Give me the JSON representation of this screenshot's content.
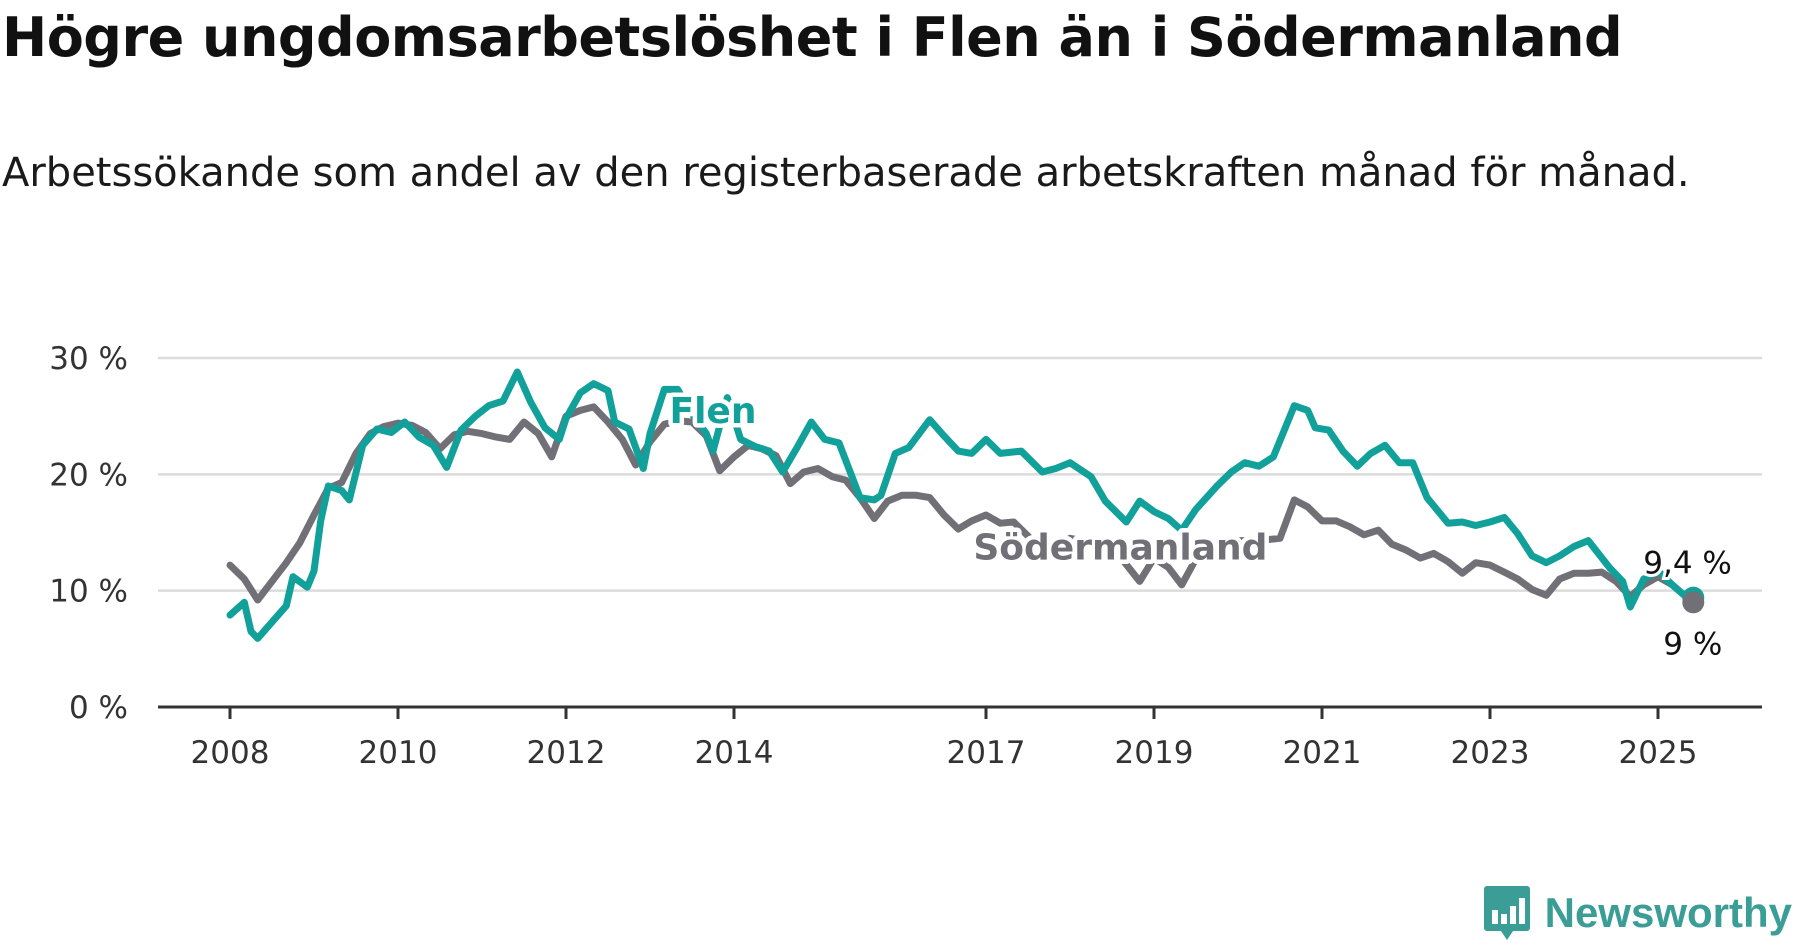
{
  "title": "Högre ungdomsarbetslöshet i Flen än i Södermanland",
  "subtitle": "Arbetssökande som andel av den registerbaserade arbetskraften månad för månad.",
  "brand": "Newsworthy",
  "colors": {
    "flen": "#11a19a",
    "sodermanland": "#717077",
    "grid": "#dcdcdc",
    "axis": "#333333"
  },
  "chart_data": {
    "type": "line",
    "ylim": [
      0,
      30
    ],
    "xlim": [
      2008.0,
      2025.8
    ],
    "y_ticks": [
      0,
      10,
      20,
      30
    ],
    "y_tick_labels": [
      "0 %",
      "10 %",
      "20 %",
      "30 %"
    ],
    "x_ticks": [
      2008,
      2010,
      2012,
      2014,
      2017,
      2019,
      2021,
      2023,
      2025
    ],
    "x_tick_labels": [
      "2008",
      "2010",
      "2012",
      "2014",
      "2017",
      "2019",
      "2021",
      "2023",
      "2025"
    ],
    "grid": "horizontal",
    "series": [
      {
        "name": "Flen",
        "end_label": "9,4 %",
        "points": [
          [
            2008.0,
            7.9
          ],
          [
            2008.17,
            9.0
          ],
          [
            2008.25,
            6.5
          ],
          [
            2008.33,
            5.9
          ],
          [
            2008.5,
            7.3
          ],
          [
            2008.67,
            8.7
          ],
          [
            2008.75,
            11.2
          ],
          [
            2008.92,
            10.3
          ],
          [
            2009.0,
            11.7
          ],
          [
            2009.08,
            16.0
          ],
          [
            2009.17,
            19.0
          ],
          [
            2009.33,
            18.6
          ],
          [
            2009.42,
            17.8
          ],
          [
            2009.58,
            22.5
          ],
          [
            2009.75,
            23.9
          ],
          [
            2009.92,
            23.6
          ],
          [
            2010.08,
            24.5
          ],
          [
            2010.25,
            23.2
          ],
          [
            2010.42,
            22.5
          ],
          [
            2010.58,
            20.6
          ],
          [
            2010.75,
            23.8
          ],
          [
            2010.92,
            25.0
          ],
          [
            2011.08,
            25.9
          ],
          [
            2011.25,
            26.3
          ],
          [
            2011.42,
            28.8
          ],
          [
            2011.58,
            26.2
          ],
          [
            2011.75,
            24.0
          ],
          [
            2011.92,
            23.0
          ],
          [
            2012.0,
            24.8
          ],
          [
            2012.17,
            27.0
          ],
          [
            2012.33,
            27.8
          ],
          [
            2012.5,
            27.2
          ],
          [
            2012.58,
            24.5
          ],
          [
            2012.75,
            23.9
          ],
          [
            2012.92,
            20.5
          ],
          [
            2013.0,
            23.5
          ],
          [
            2013.17,
            27.3
          ],
          [
            2013.33,
            27.3
          ],
          [
            2013.5,
            25.2
          ],
          [
            2013.67,
            23.5
          ],
          [
            2013.75,
            22.0
          ],
          [
            2013.92,
            26.6
          ],
          [
            2014.08,
            23.0
          ],
          [
            2014.25,
            22.4
          ],
          [
            2014.42,
            22.0
          ],
          [
            2014.58,
            20.2
          ],
          [
            2014.75,
            22.3
          ],
          [
            2014.92,
            24.5
          ],
          [
            2015.08,
            23.0
          ],
          [
            2015.25,
            22.7
          ],
          [
            2015.42,
            19.5
          ],
          [
            2015.5,
            18.0
          ],
          [
            2015.67,
            17.8
          ],
          [
            2015.75,
            18.2
          ],
          [
            2015.92,
            21.8
          ],
          [
            2016.08,
            22.3
          ],
          [
            2016.33,
            24.7
          ],
          [
            2016.5,
            23.3
          ],
          [
            2016.67,
            22.0
          ],
          [
            2016.83,
            21.8
          ],
          [
            2017.0,
            23.0
          ],
          [
            2017.17,
            21.8
          ],
          [
            2017.42,
            22.0
          ],
          [
            2017.67,
            20.2
          ],
          [
            2017.83,
            20.5
          ],
          [
            2018.0,
            21.0
          ],
          [
            2018.25,
            19.8
          ],
          [
            2018.42,
            17.7
          ],
          [
            2018.67,
            15.9
          ],
          [
            2018.83,
            17.7
          ],
          [
            2019.0,
            16.8
          ],
          [
            2019.17,
            16.2
          ],
          [
            2019.33,
            15.2
          ],
          [
            2019.5,
            17.0
          ],
          [
            2019.75,
            19.0
          ],
          [
            2019.92,
            20.2
          ],
          [
            2020.08,
            21.0
          ],
          [
            2020.25,
            20.7
          ],
          [
            2020.42,
            21.5
          ],
          [
            2020.67,
            25.9
          ],
          [
            2020.83,
            25.5
          ],
          [
            2020.92,
            24.0
          ],
          [
            2021.08,
            23.8
          ],
          [
            2021.25,
            22.0
          ],
          [
            2021.42,
            20.7
          ],
          [
            2021.58,
            21.8
          ],
          [
            2021.75,
            22.5
          ],
          [
            2021.92,
            21.0
          ],
          [
            2022.08,
            21.0
          ],
          [
            2022.25,
            18.0
          ],
          [
            2022.5,
            15.8
          ],
          [
            2022.67,
            15.9
          ],
          [
            2022.83,
            15.6
          ],
          [
            2023.0,
            15.9
          ],
          [
            2023.17,
            16.3
          ],
          [
            2023.33,
            14.9
          ],
          [
            2023.5,
            13.0
          ],
          [
            2023.67,
            12.4
          ],
          [
            2023.83,
            13.0
          ],
          [
            2024.0,
            13.8
          ],
          [
            2024.17,
            14.3
          ],
          [
            2024.42,
            12.0
          ],
          [
            2024.58,
            10.8
          ],
          [
            2024.67,
            8.6
          ],
          [
            2024.83,
            11.0
          ],
          [
            2025.0,
            11.7
          ],
          [
            2025.17,
            10.5
          ],
          [
            2025.33,
            9.5
          ],
          [
            2025.42,
            9.4
          ]
        ]
      },
      {
        "name": "Södermanland",
        "end_label": "9 %",
        "points": [
          [
            2008.0,
            12.2
          ],
          [
            2008.17,
            11.0
          ],
          [
            2008.33,
            9.2
          ],
          [
            2008.5,
            10.8
          ],
          [
            2008.67,
            12.4
          ],
          [
            2008.83,
            14.1
          ],
          [
            2009.0,
            16.5
          ],
          [
            2009.17,
            18.8
          ],
          [
            2009.33,
            19.3
          ],
          [
            2009.5,
            21.8
          ],
          [
            2009.67,
            23.5
          ],
          [
            2009.83,
            24.1
          ],
          [
            2010.0,
            24.4
          ],
          [
            2010.17,
            24.2
          ],
          [
            2010.33,
            23.6
          ],
          [
            2010.5,
            22.2
          ],
          [
            2010.67,
            23.4
          ],
          [
            2010.83,
            23.7
          ],
          [
            2011.0,
            23.5
          ],
          [
            2011.17,
            23.2
          ],
          [
            2011.33,
            23.0
          ],
          [
            2011.5,
            24.5
          ],
          [
            2011.67,
            23.5
          ],
          [
            2011.83,
            21.5
          ],
          [
            2012.0,
            25.0
          ],
          [
            2012.17,
            25.5
          ],
          [
            2012.33,
            25.8
          ],
          [
            2012.5,
            24.5
          ],
          [
            2012.67,
            23.0
          ],
          [
            2012.83,
            20.8
          ],
          [
            2013.0,
            22.8
          ],
          [
            2013.17,
            24.3
          ],
          [
            2013.33,
            24.6
          ],
          [
            2013.5,
            24.5
          ],
          [
            2013.67,
            23.3
          ],
          [
            2013.83,
            20.3
          ],
          [
            2014.0,
            21.5
          ],
          [
            2014.17,
            22.5
          ],
          [
            2014.33,
            22.2
          ],
          [
            2014.5,
            21.6
          ],
          [
            2014.67,
            19.2
          ],
          [
            2014.83,
            20.2
          ],
          [
            2015.0,
            20.5
          ],
          [
            2015.17,
            19.8
          ],
          [
            2015.33,
            19.5
          ],
          [
            2015.5,
            18.0
          ],
          [
            2015.67,
            16.2
          ],
          [
            2015.83,
            17.7
          ],
          [
            2016.0,
            18.2
          ],
          [
            2016.17,
            18.2
          ],
          [
            2016.33,
            18.0
          ],
          [
            2016.5,
            16.5
          ],
          [
            2016.67,
            15.3
          ],
          [
            2016.83,
            16.0
          ],
          [
            2017.0,
            16.5
          ],
          [
            2017.17,
            15.8
          ],
          [
            2017.33,
            15.9
          ],
          [
            2017.5,
            14.7
          ],
          [
            2017.67,
            13.2
          ],
          [
            2017.83,
            13.6
          ],
          [
            2018.0,
            14.5
          ],
          [
            2018.5,
            13.8
          ],
          [
            2018.83,
            10.8
          ],
          [
            2019.0,
            12.8
          ],
          [
            2019.17,
            12.0
          ],
          [
            2019.33,
            10.5
          ],
          [
            2019.58,
            13.8
          ],
          [
            2019.83,
            14.3
          ],
          [
            2020.25,
            14.3
          ],
          [
            2020.5,
            14.5
          ],
          [
            2020.67,
            17.8
          ],
          [
            2020.83,
            17.2
          ],
          [
            2021.0,
            16.0
          ],
          [
            2021.17,
            16.0
          ],
          [
            2021.33,
            15.5
          ],
          [
            2021.5,
            14.8
          ],
          [
            2021.67,
            15.2
          ],
          [
            2021.83,
            14.0
          ],
          [
            2022.0,
            13.5
          ],
          [
            2022.17,
            12.8
          ],
          [
            2022.33,
            13.2
          ],
          [
            2022.5,
            12.5
          ],
          [
            2022.67,
            11.5
          ],
          [
            2022.83,
            12.4
          ],
          [
            2023.0,
            12.2
          ],
          [
            2023.17,
            11.6
          ],
          [
            2023.33,
            11.0
          ],
          [
            2023.5,
            10.1
          ],
          [
            2023.67,
            9.6
          ],
          [
            2023.83,
            11.0
          ],
          [
            2024.0,
            11.5
          ],
          [
            2024.17,
            11.5
          ],
          [
            2024.33,
            11.6
          ],
          [
            2024.5,
            10.8
          ],
          [
            2024.67,
            9.5
          ],
          [
            2024.83,
            10.5
          ],
          [
            2025.0,
            11.2
          ],
          [
            2025.17,
            10.5
          ],
          [
            2025.33,
            9.5
          ],
          [
            2025.42,
            9.0
          ]
        ]
      }
    ]
  }
}
